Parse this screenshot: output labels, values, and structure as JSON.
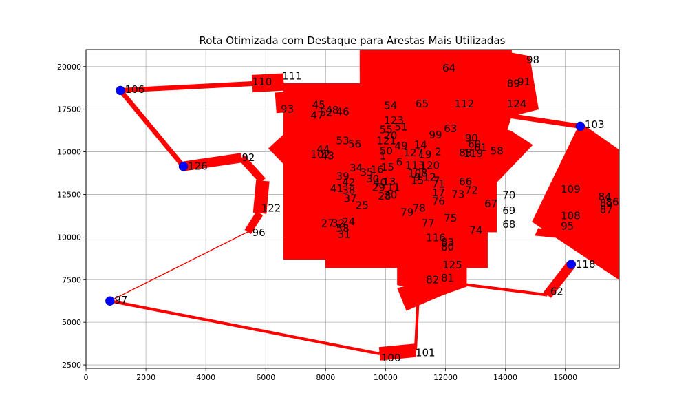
{
  "chart_data": {
    "type": "line",
    "title": "Rota Otimizada com Destaque para Arestas Mais Utilizadas",
    "xlabel": "",
    "ylabel": "",
    "xlim": [
      0,
      17800
    ],
    "ylim": [
      2300,
      21000
    ],
    "x_ticks": [
      0,
      2000,
      4000,
      6000,
      8000,
      10000,
      12000,
      14000,
      16000
    ],
    "y_ticks": [
      2500,
      5000,
      7500,
      10000,
      12500,
      15000,
      17500,
      20000
    ],
    "grid": true,
    "edge_color": "#ff0000",
    "node_color": "#0000ff",
    "highlighted_nodes": [
      {
        "id": "106",
        "x": 1150,
        "y": 18600
      },
      {
        "id": "126",
        "x": 3250,
        "y": 14150
      },
      {
        "id": "97",
        "x": 800,
        "y": 6250
      },
      {
        "id": "103",
        "x": 16500,
        "y": 16500
      },
      {
        "id": "118",
        "x": 16200,
        "y": 8400
      }
    ],
    "labels": [
      {
        "id": "98",
        "x": 14700,
        "y": 20400
      },
      {
        "id": "64",
        "x": 11900,
        "y": 19900
      },
      {
        "id": "91",
        "x": 14400,
        "y": 19100
      },
      {
        "id": "89",
        "x": 14050,
        "y": 19000
      },
      {
        "id": "110",
        "x": 5550,
        "y": 19100
      },
      {
        "id": "111",
        "x": 6550,
        "y": 19450
      },
      {
        "id": "106",
        "x": 1300,
        "y": 18650
      },
      {
        "id": "112",
        "x": 12300,
        "y": 17800
      },
      {
        "id": "124",
        "x": 14050,
        "y": 17800
      },
      {
        "id": "54",
        "x": 9950,
        "y": 17700
      },
      {
        "id": "65",
        "x": 11000,
        "y": 17800
      },
      {
        "id": "45",
        "x": 7550,
        "y": 17750
      },
      {
        "id": "93",
        "x": 6500,
        "y": 17500
      },
      {
        "id": "48",
        "x": 8000,
        "y": 17450
      },
      {
        "id": "46",
        "x": 8350,
        "y": 17350
      },
      {
        "id": "47",
        "x": 7500,
        "y": 17150
      },
      {
        "id": "52",
        "x": 7800,
        "y": 17300
      },
      {
        "id": "123",
        "x": 9950,
        "y": 16850
      },
      {
        "id": "51",
        "x": 10300,
        "y": 16450
      },
      {
        "id": "55",
        "x": 9800,
        "y": 16300
      },
      {
        "id": "103",
        "x": 16650,
        "y": 16600
      },
      {
        "id": "63",
        "x": 11950,
        "y": 16350
      },
      {
        "id": "99",
        "x": 11450,
        "y": 16000
      },
      {
        "id": "20",
        "x": 9950,
        "y": 15950
      },
      {
        "id": "121",
        "x": 9700,
        "y": 15650
      },
      {
        "id": "53",
        "x": 8350,
        "y": 15650
      },
      {
        "id": "56",
        "x": 8750,
        "y": 15450
      },
      {
        "id": "90",
        "x": 12650,
        "y": 15800
      },
      {
        "id": "49",
        "x": 10300,
        "y": 15350
      },
      {
        "id": "60",
        "x": 12750,
        "y": 15450
      },
      {
        "id": "14",
        "x": 10950,
        "y": 15400
      },
      {
        "id": "44",
        "x": 7700,
        "y": 15150
      },
      {
        "id": "50",
        "x": 9800,
        "y": 15050
      },
      {
        "id": "61",
        "x": 12950,
        "y": 15250
      },
      {
        "id": "58",
        "x": 13500,
        "y": 15050
      },
      {
        "id": "102",
        "x": 7500,
        "y": 14850
      },
      {
        "id": "43",
        "x": 7850,
        "y": 14750
      },
      {
        "id": "127",
        "x": 10600,
        "y": 14950
      },
      {
        "id": "19",
        "x": 11100,
        "y": 14850
      },
      {
        "id": "2",
        "x": 11650,
        "y": 15000
      },
      {
        "id": "88",
        "x": 12450,
        "y": 14950
      },
      {
        "id": "119",
        "x": 12600,
        "y": 14900
      },
      {
        "id": "92",
        "x": 5200,
        "y": 14650
      },
      {
        "id": "1",
        "x": 9800,
        "y": 14750
      },
      {
        "id": "126",
        "x": 3400,
        "y": 14150
      },
      {
        "id": "6",
        "x": 10350,
        "y": 14400
      },
      {
        "id": "15",
        "x": 9850,
        "y": 14100
      },
      {
        "id": "113",
        "x": 10650,
        "y": 14200
      },
      {
        "id": "120",
        "x": 11150,
        "y": 14200
      },
      {
        "id": "34",
        "x": 8800,
        "y": 14050
      },
      {
        "id": "16",
        "x": 9500,
        "y": 13950
      },
      {
        "id": "35",
        "x": 9150,
        "y": 13800
      },
      {
        "id": "108",
        "x": 10750,
        "y": 13750
      },
      {
        "id": "39",
        "x": 8350,
        "y": 13550
      },
      {
        "id": "9",
        "x": 10950,
        "y": 13500
      },
      {
        "id": "12",
        "x": 11250,
        "y": 13500
      },
      {
        "id": "30",
        "x": 9350,
        "y": 13400
      },
      {
        "id": "40",
        "x": 9600,
        "y": 13200
      },
      {
        "id": "13",
        "x": 9900,
        "y": 13250
      },
      {
        "id": "42",
        "x": 8550,
        "y": 13200
      },
      {
        "id": "7",
        "x": 11600,
        "y": 13300
      },
      {
        "id": "66",
        "x": 12450,
        "y": 13250
      },
      {
        "id": "15b",
        "x": 10850,
        "y": 13300
      },
      {
        "id": "11",
        "x": 10050,
        "y": 12900
      },
      {
        "id": "71",
        "x": 11550,
        "y": 13100
      },
      {
        "id": "17",
        "x": 11550,
        "y": 12600
      },
      {
        "id": "41",
        "x": 8150,
        "y": 12850
      },
      {
        "id": "38",
        "x": 8550,
        "y": 12750
      },
      {
        "id": "29",
        "x": 9550,
        "y": 12900
      },
      {
        "id": "72",
        "x": 12650,
        "y": 12750
      },
      {
        "id": "73",
        "x": 12200,
        "y": 12500
      },
      {
        "id": "28",
        "x": 9750,
        "y": 12400
      },
      {
        "id": "30b",
        "x": 9950,
        "y": 12450
      },
      {
        "id": "70",
        "x": 13900,
        "y": 12450
      },
      {
        "id": "109",
        "x": 15850,
        "y": 12800
      },
      {
        "id": "84",
        "x": 17100,
        "y": 12350
      },
      {
        "id": "37",
        "x": 8600,
        "y": 12250
      },
      {
        "id": "76",
        "x": 11550,
        "y": 12100
      },
      {
        "id": "67",
        "x": 13300,
        "y": 11950
      },
      {
        "id": "85",
        "x": 17150,
        "y": 12000
      },
      {
        "id": "86",
        "x": 17350,
        "y": 12050
      },
      {
        "id": "25",
        "x": 9000,
        "y": 11850
      },
      {
        "id": "78",
        "x": 10900,
        "y": 11700
      },
      {
        "id": "122",
        "x": 5850,
        "y": 11700
      },
      {
        "id": "87",
        "x": 17150,
        "y": 11600
      },
      {
        "id": "69",
        "x": 13900,
        "y": 11550
      },
      {
        "id": "79",
        "x": 10500,
        "y": 11450
      },
      {
        "id": "108b",
        "x": 15850,
        "y": 11250
      },
      {
        "id": "75",
        "x": 11950,
        "y": 11100
      },
      {
        "id": "27",
        "x": 7850,
        "y": 10800
      },
      {
        "id": "32",
        "x": 8200,
        "y": 10800
      },
      {
        "id": "24",
        "x": 8550,
        "y": 10900
      },
      {
        "id": "77",
        "x": 11200,
        "y": 10800
      },
      {
        "id": "95",
        "x": 15850,
        "y": 10650
      },
      {
        "id": "68",
        "x": 13900,
        "y": 10750
      },
      {
        "id": "58b",
        "x": 8350,
        "y": 10500
      },
      {
        "id": "74",
        "x": 12800,
        "y": 10400
      },
      {
        "id": "31",
        "x": 8400,
        "y": 10150
      },
      {
        "id": "96",
        "x": 5550,
        "y": 10250
      },
      {
        "id": "116",
        "x": 11350,
        "y": 9950
      },
      {
        "id": "83",
        "x": 11850,
        "y": 9700
      },
      {
        "id": "80",
        "x": 11850,
        "y": 9400
      },
      {
        "id": "125",
        "x": 11900,
        "y": 8350
      },
      {
        "id": "118",
        "x": 16350,
        "y": 8400
      },
      {
        "id": "81",
        "x": 11850,
        "y": 7600
      },
      {
        "id": "82",
        "x": 11350,
        "y": 7500
      },
      {
        "id": "62",
        "x": 15500,
        "y": 6800
      },
      {
        "id": "97",
        "x": 950,
        "y": 6300
      },
      {
        "id": "101",
        "x": 11000,
        "y": 3200
      },
      {
        "id": "100",
        "x": 9850,
        "y": 2900
      }
    ],
    "route_edges": [
      {
        "from": [
          1150,
          18600
        ],
        "to": [
          5550,
          19000
        ],
        "weight": 5
      },
      {
        "from": [
          1150,
          18600
        ],
        "to": [
          3250,
          14150
        ],
        "weight": 5
      },
      {
        "from": [
          3250,
          14150
        ],
        "to": [
          5200,
          14650
        ],
        "weight": 10
      },
      {
        "from": [
          5200,
          14650
        ],
        "to": [
          5900,
          13300
        ],
        "weight": 8
      },
      {
        "from": [
          5900,
          13300
        ],
        "to": [
          5800,
          11400
        ],
        "weight": 14
      },
      {
        "from": [
          5800,
          11400
        ],
        "to": [
          5400,
          10300
        ],
        "weight": 8
      },
      {
        "from": [
          5400,
          10300
        ],
        "to": [
          800,
          6250
        ],
        "weight": 1
      },
      {
        "from": [
          800,
          6250
        ],
        "to": [
          9800,
          3150
        ],
        "weight": 3
      },
      {
        "from": [
          9800,
          3150
        ],
        "to": [
          11000,
          3350
        ],
        "weight": 14
      },
      {
        "from": [
          11000,
          3350
        ],
        "to": [
          11100,
          6900
        ],
        "weight": 3
      },
      {
        "from": [
          12700,
          7200
        ],
        "to": [
          15400,
          6600
        ],
        "weight": 3
      },
      {
        "from": [
          15400,
          6600
        ],
        "to": [
          16200,
          8400
        ],
        "weight": 10
      },
      {
        "from": [
          14200,
          17100
        ],
        "to": [
          16500,
          16500
        ],
        "weight": 5
      },
      {
        "from": [
          5550,
          19000
        ],
        "to": [
          6600,
          19100
        ],
        "weight": 18
      },
      {
        "from": [
          6500,
          18500
        ],
        "to": [
          6550,
          17300
        ],
        "weight": 12
      }
    ],
    "dense_regions": [
      [
        [
          9150,
          21000
        ],
        [
          14200,
          21000
        ],
        [
          14200,
          17100
        ],
        [
          13700,
          14300
        ],
        [
          13700,
          10300
        ],
        [
          13400,
          10300
        ],
        [
          13400,
          8200
        ],
        [
          12700,
          8200
        ],
        [
          12700,
          7100
        ],
        [
          11900,
          6600
        ],
        [
          10400,
          7200
        ],
        [
          10400,
          8200
        ],
        [
          8000,
          8200
        ],
        [
          8000,
          8700
        ],
        [
          6600,
          8700
        ],
        [
          6600,
          14300
        ],
        [
          6100,
          15200
        ],
        [
          6600,
          16000
        ],
        [
          6600,
          19000
        ],
        [
          9150,
          19000
        ]
      ],
      [
        [
          9150,
          21000
        ],
        [
          14200,
          21000
        ],
        [
          14200,
          19800
        ],
        [
          9150,
          19800
        ]
      ],
      [
        [
          14200,
          20800
        ],
        [
          14800,
          20600
        ],
        [
          15100,
          17500
        ],
        [
          14200,
          17100
        ]
      ],
      [
        [
          14200,
          16200
        ],
        [
          14900,
          15400
        ],
        [
          13700,
          13200
        ],
        [
          13700,
          16500
        ]
      ],
      [
        [
          14900,
          10900
        ],
        [
          16500,
          16700
        ],
        [
          17800,
          15100
        ],
        [
          17800,
          7500
        ]
      ],
      [
        [
          10400,
          7200
        ],
        [
          12700,
          7600
        ],
        [
          12700,
          8200
        ],
        [
          10400,
          8200
        ]
      ],
      [
        [
          10400,
          7000
        ],
        [
          11800,
          7500
        ],
        [
          11900,
          6600
        ],
        [
          10700,
          5700
        ]
      ],
      [
        [
          15000,
          10100
        ],
        [
          16100,
          9900
        ],
        [
          16200,
          10300
        ],
        [
          15100,
          10500
        ]
      ]
    ]
  }
}
